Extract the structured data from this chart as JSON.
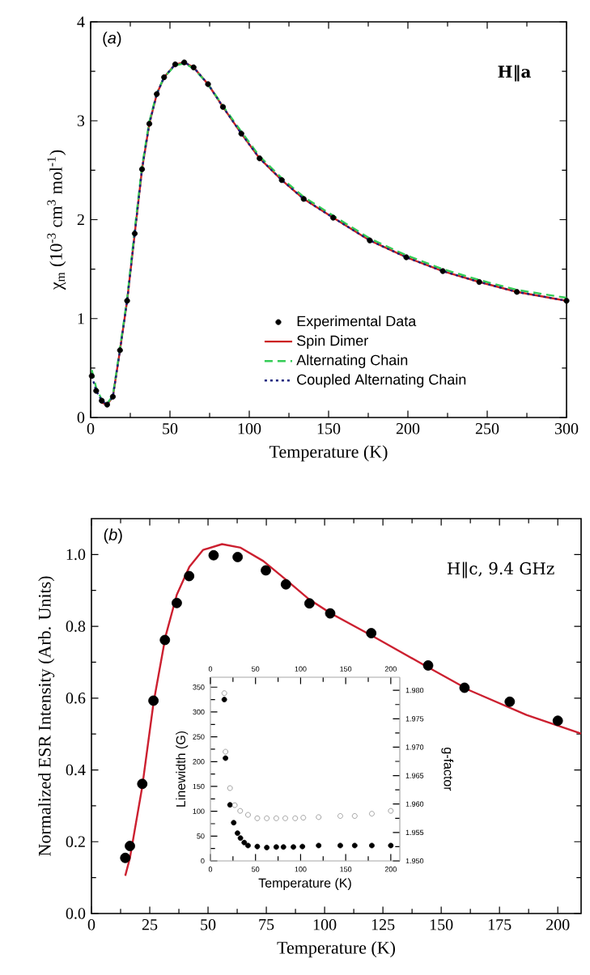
{
  "chart_data": [
    {
      "type": "line",
      "xlabel": "Temperature (K)",
      "ylabel": "χ$_{m}$ (10$^{-3}$ cm$^{3}$ mol$^{-1}$)",
      "annotations": [
        "(*a*)",
        "H‖a"
      ],
      "xlim": [
        0,
        300
      ],
      "ylim": [
        0,
        4
      ],
      "xticks": [
        0,
        50,
        100,
        150,
        200,
        250,
        300
      ],
      "yticks": [
        0,
        1,
        2,
        3,
        4
      ],
      "legend": "bottom",
      "x": [
        0.7,
        3.5,
        7,
        10.4,
        14,
        18.5,
        23,
        27.8,
        32.4,
        37,
        41.7,
        46.3,
        53.3,
        59,
        64.9,
        74,
        83.4,
        95,
        106.5,
        120.5,
        134.3,
        152.9,
        176,
        199,
        222,
        245,
        268.7,
        300
      ],
      "series": [
        {
          "name": "Experimental Data",
          "type": "scatter",
          "marker": "circle",
          "color": "#000000",
          "values": [
            0.42,
            0.27,
            0.17,
            0.13,
            0.21,
            0.68,
            1.18,
            1.86,
            2.51,
            2.97,
            3.27,
            3.44,
            3.57,
            3.59,
            3.54,
            3.37,
            3.14,
            2.87,
            2.62,
            2.4,
            2.21,
            2.02,
            1.79,
            1.62,
            1.48,
            1.37,
            1.27,
            1.18
          ]
        },
        {
          "name": "Spin Dimer",
          "color": "#cc2222",
          "line_style": "solid",
          "marker": "none",
          "values": [
            null,
            null,
            0.15,
            0.13,
            0.21,
            0.68,
            1.18,
            1.86,
            2.51,
            2.97,
            3.27,
            3.44,
            3.57,
            3.59,
            3.54,
            3.37,
            3.14,
            2.87,
            2.62,
            2.4,
            2.21,
            2.02,
            1.79,
            1.62,
            1.48,
            1.37,
            1.27,
            1.18
          ]
        },
        {
          "name": "Alternating Chain",
          "color": "#33cc55",
          "line_style": "dashed",
          "marker": "none",
          "values": [
            0.48,
            0.3,
            0.18,
            0.14,
            0.22,
            0.7,
            1.2,
            1.9,
            2.54,
            2.99,
            3.28,
            3.44,
            3.56,
            3.58,
            3.53,
            3.37,
            3.15,
            2.89,
            2.64,
            2.42,
            2.23,
            2.04,
            1.81,
            1.64,
            1.5,
            1.39,
            1.29,
            1.21
          ]
        },
        {
          "name": "Coupled Alternating Chain",
          "color": "#1a237e",
          "line_style": "dotted",
          "marker": "none",
          "values": [
            0.42,
            0.27,
            0.17,
            0.13,
            0.21,
            0.68,
            1.18,
            1.86,
            2.51,
            2.97,
            3.27,
            3.44,
            3.57,
            3.59,
            3.54,
            3.37,
            3.14,
            2.87,
            2.62,
            2.4,
            2.21,
            2.02,
            1.79,
            1.62,
            1.48,
            1.37,
            1.27,
            1.18
          ]
        }
      ]
    },
    {
      "type": "scatter",
      "xlabel": "Temperature (K)",
      "ylabel": "Normalized ESR Intensity (Arb. Units)",
      "annotations": [
        "(*b*)",
        "H‖c, 9.4 GHz"
      ],
      "xlim": [
        0,
        210
      ],
      "ylim": [
        0,
        1.1
      ],
      "xticks": [
        0,
        25,
        50,
        75,
        100,
        125,
        150,
        175,
        200
      ],
      "yticks": [
        {
          "value": 0,
          "label": "0.0"
        },
        0.2,
        0.4,
        0.6,
        0.8,
        {
          "value": 1,
          "label": "1.0"
        }
      ],
      "series": [
        {
          "color": "#000000",
          "marker": "circle",
          "x": [
            14.5,
            16.5,
            21.8,
            26.6,
            31.5,
            36.6,
            41.9,
            52.4,
            62.7,
            74.8,
            83.4,
            93.5,
            102.4,
            120,
            144.4,
            160,
            179.4,
            200
          ],
          "values": [
            0.155,
            0.188,
            0.361,
            0.593,
            0.762,
            0.865,
            0.94,
            0.998,
            0.993,
            0.956,
            0.917,
            0.864,
            0.836,
            0.781,
            0.691,
            0.629,
            0.59,
            0.537
          ]
        },
        {
          "type": "line",
          "marker": "none",
          "color": "#cc2030",
          "x": [
            14.5,
            16.5,
            21.8,
            26.6,
            31.8,
            36.6,
            42,
            47.9,
            56,
            64,
            73.7,
            83.4,
            93,
            102.7,
            120.5,
            143,
            162.4,
            186.6,
            210
          ],
          "values": [
            0.105,
            0.155,
            0.354,
            0.586,
            0.773,
            0.888,
            0.966,
            1.013,
            1.029,
            1.019,
            0.982,
            0.93,
            0.877,
            0.836,
            0.773,
            0.691,
            0.621,
            0.553,
            0.501
          ]
        }
      ]
    },
    {
      "type": "scatter",
      "xlabel": "Temperature (K)",
      "ylabel": "Linewidth (G)",
      "y2label": "g-factor",
      "xlim": [
        0,
        210
      ],
      "ylim": [
        0,
        370
      ],
      "y2lim": [
        1.95,
        1.9823
      ],
      "x2lim": [
        0,
        210
      ],
      "xticks": [
        0,
        50,
        100,
        150,
        200
      ],
      "x2ticks": [
        0,
        50,
        100,
        150,
        200
      ],
      "yticks": [
        0,
        50,
        100,
        150,
        200,
        250,
        300,
        350
      ],
      "y2ticks": [
        {
          "value": 1.95,
          "label": "1.950"
        },
        {
          "value": 1.955,
          "label": "1.955"
        },
        {
          "value": 1.96,
          "label": "1.960"
        },
        {
          "value": 1.965,
          "label": "1.965"
        },
        {
          "value": 1.97,
          "label": "1.970"
        },
        {
          "value": 1.975,
          "label": "1.975"
        },
        {
          "value": 1.98,
          "label": "1.980"
        }
      ],
      "series": [
        {
          "color": "#000000",
          "marker": "circle",
          "axis": "y",
          "x": [
            15.4,
            16.7,
            21.7,
            25.8,
            30,
            33.3,
            37.5,
            41.7,
            52,
            62.5,
            73,
            81,
            92,
            102,
            120,
            144,
            160,
            179,
            200
          ],
          "values": [
            325,
            207,
            113,
            77,
            56,
            46,
            37,
            31,
            29,
            27,
            28,
            28,
            28,
            29,
            31,
            31,
            31,
            31,
            31
          ]
        },
        {
          "color": "#8a8a8a",
          "marker": "circle",
          "axis": "y2",
          "x": [
            15.4,
            16.7,
            21.7,
            27,
            33,
            41.7,
            52,
            62.5,
            73,
            83,
            94,
            103,
            120,
            144,
            160,
            179,
            200
          ],
          "values": [
            1.9795,
            1.9692,
            1.9628,
            1.9598,
            1.9588,
            1.9581,
            1.9575,
            1.9575,
            1.9575,
            1.9575,
            1.9575,
            1.9576,
            1.9577,
            1.9579,
            1.9579,
            1.9583,
            1.9588
          ]
        }
      ]
    }
  ]
}
